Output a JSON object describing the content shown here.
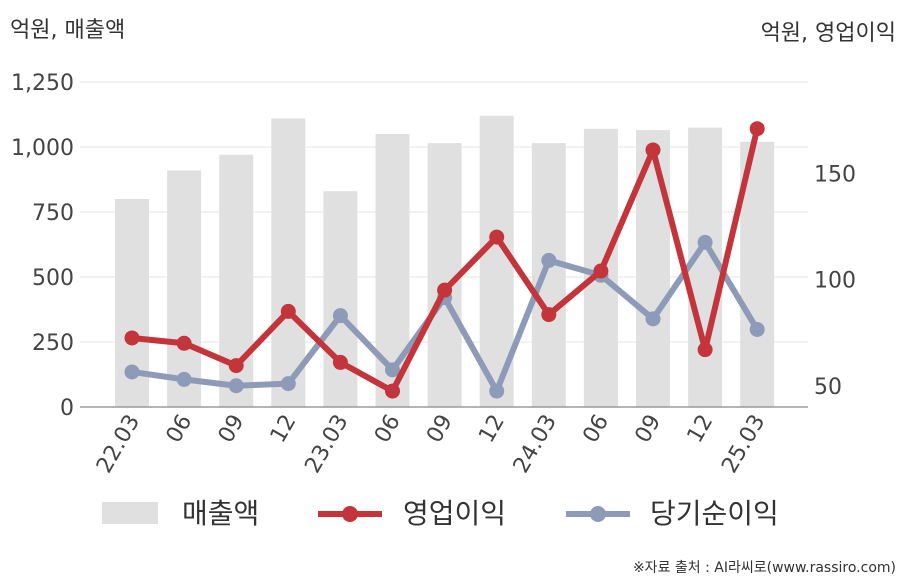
{
  "chart_data": {
    "type": "bar",
    "left_unit": "억원, 매출액",
    "right_unit": "억원, 영업이익",
    "categories": [
      "22.03",
      "06",
      "09",
      "12",
      "23.03",
      "06",
      "09",
      "12",
      "24.03",
      "06",
      "09",
      "12",
      "25.03"
    ],
    "left_axis": {
      "ylim": [
        0,
        1250
      ],
      "ticks": [
        "0",
        "250",
        "500",
        "750",
        "1,000",
        "1,250"
      ]
    },
    "right_axis": {
      "ylim": [
        40,
        193
      ],
      "ticks": [
        "50",
        "100",
        "150"
      ]
    },
    "series": [
      {
        "name": "매출액",
        "kind": "bar",
        "axis": "left",
        "color": "#e0e0e0",
        "values": [
          800,
          910,
          970,
          1110,
          830,
          1050,
          1015,
          1120,
          1015,
          1070,
          1065,
          1075,
          1020
        ]
      },
      {
        "name": "영업이익",
        "kind": "line",
        "axis": "right",
        "color": "#c3353a",
        "values": [
          72.5,
          70.0,
          59.5,
          85.0,
          61.0,
          47.5,
          95.0,
          120.0,
          83.5,
          104.0,
          161.0,
          67.0,
          171.0
        ]
      },
      {
        "name": "당기순이익",
        "kind": "line",
        "axis": "right",
        "color": "#8d9bb8",
        "values": [
          56.5,
          53.0,
          50.0,
          51.0,
          83.0,
          57.5,
          91.5,
          47.5,
          109.0,
          102.0,
          81.5,
          117.5,
          76.5
        ]
      }
    ],
    "grid": true,
    "legend_position": "bottom"
  },
  "source": "※자료 출처 : AI라씨로(www.rassiro.com)"
}
